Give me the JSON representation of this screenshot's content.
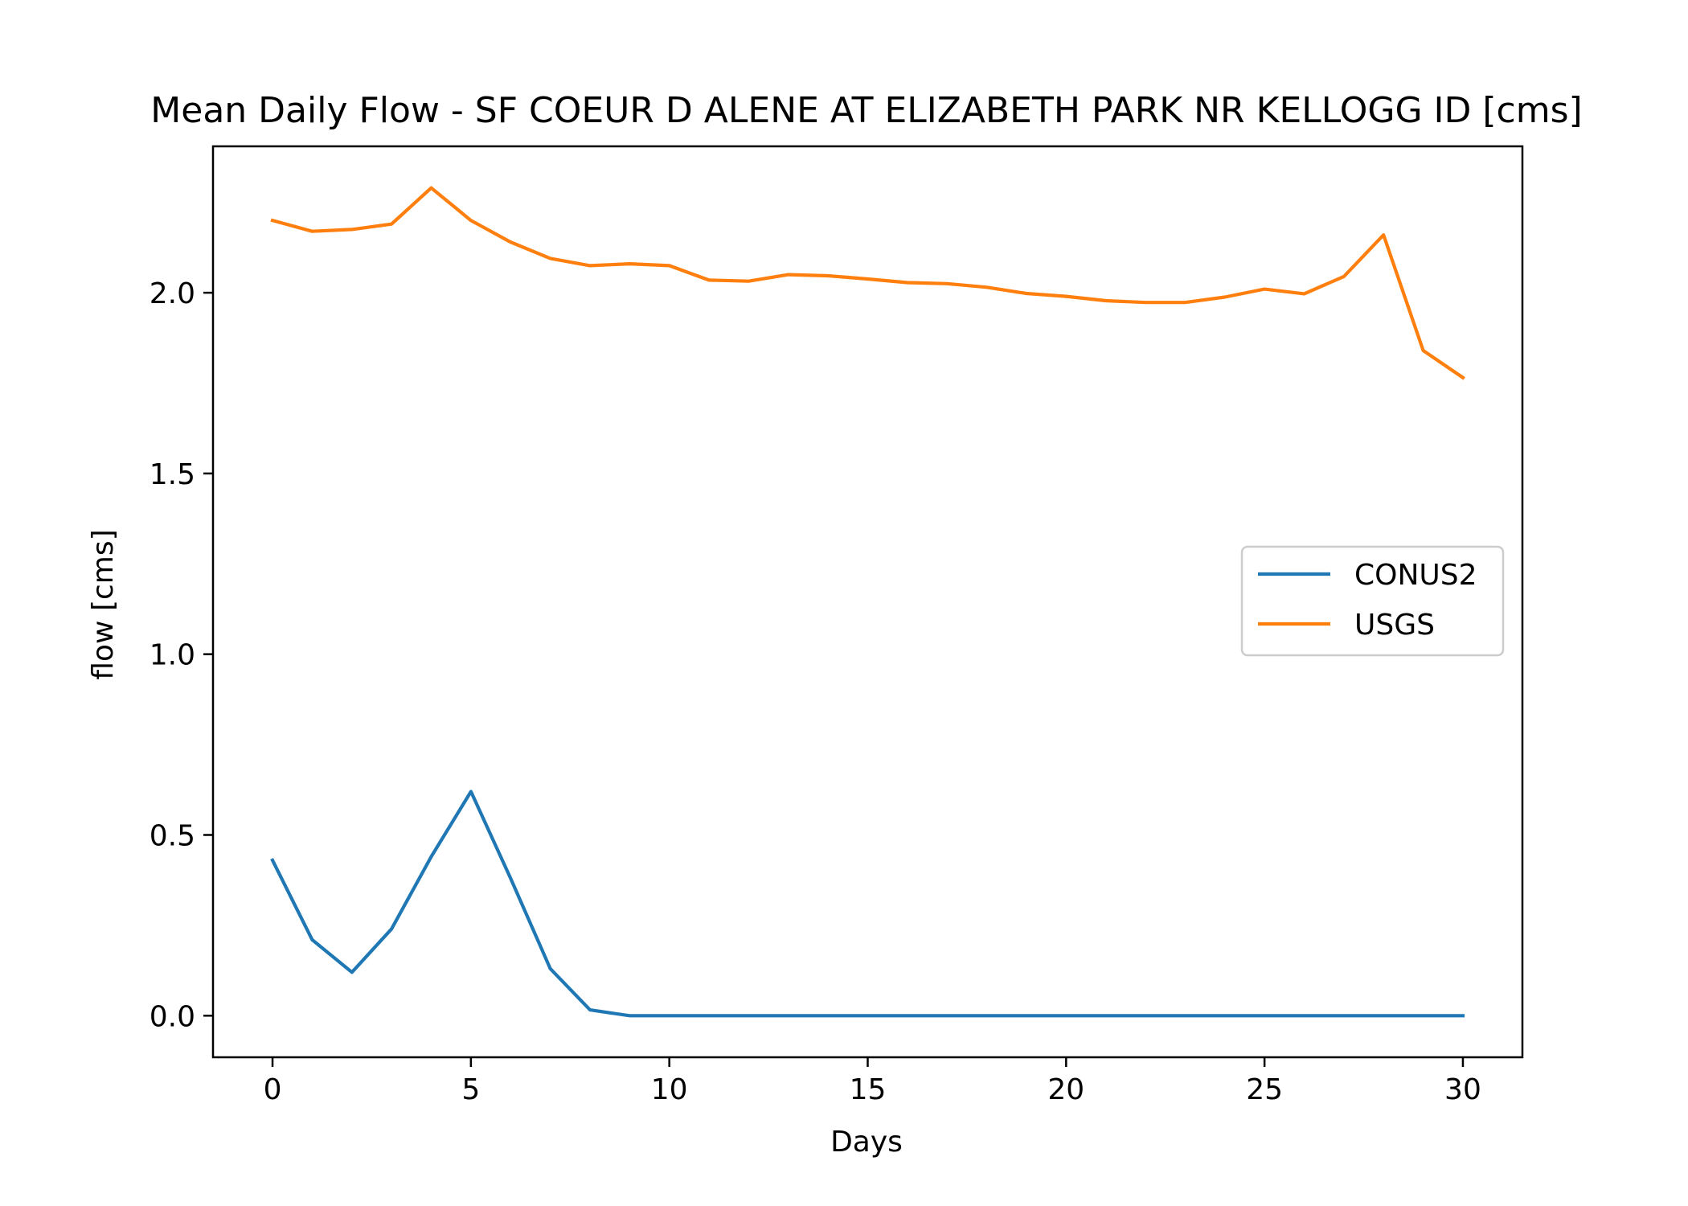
{
  "chart_data": {
    "type": "line",
    "title": "Mean Daily Flow - SF COEUR D ALENE AT ELIZABETH PARK NR KELLOGG ID [cms]",
    "xlabel": "Days",
    "ylabel": "flow [cms]",
    "xlim": [
      -1.5,
      31.5
    ],
    "ylim": [
      -0.115,
      2.405
    ],
    "xticks": [
      0,
      5,
      10,
      15,
      20,
      25,
      30
    ],
    "xtick_labels": [
      "0",
      "5",
      "10",
      "15",
      "20",
      "25",
      "30"
    ],
    "yticks": [
      0.0,
      0.5,
      1.0,
      1.5,
      2.0
    ],
    "ytick_labels": [
      "0.0",
      "0.5",
      "1.0",
      "1.5",
      "2.0"
    ],
    "grid": false,
    "legend_position": "center-right",
    "x": [
      0,
      1,
      2,
      3,
      4,
      5,
      6,
      7,
      8,
      9,
      10,
      11,
      12,
      13,
      14,
      15,
      16,
      17,
      18,
      19,
      20,
      21,
      22,
      23,
      24,
      25,
      26,
      27,
      28,
      29,
      30
    ],
    "series": [
      {
        "name": "CONUS2",
        "color": "#1f77b4",
        "values": [
          0.43,
          0.21,
          0.12,
          0.24,
          0.44,
          0.62,
          0.38,
          0.13,
          0.016,
          0.0,
          0.0,
          0.0,
          0.0,
          0.0,
          0.0,
          0.0,
          0.0,
          0.0,
          0.0,
          0.0,
          0.0,
          0.0,
          0.0,
          0.0,
          0.0,
          0.0,
          0.0,
          0.0,
          0.0,
          0.0,
          0.0
        ]
      },
      {
        "name": "USGS",
        "color": "#ff7f0e",
        "values": [
          2.2,
          2.17,
          2.175,
          2.19,
          2.29,
          2.2,
          2.14,
          2.095,
          2.075,
          2.08,
          2.075,
          2.035,
          2.032,
          2.05,
          2.047,
          2.038,
          2.028,
          2.025,
          2.015,
          1.998,
          1.99,
          1.978,
          1.973,
          1.973,
          1.988,
          2.01,
          1.997,
          2.045,
          2.16,
          1.84,
          1.765
        ]
      }
    ]
  }
}
